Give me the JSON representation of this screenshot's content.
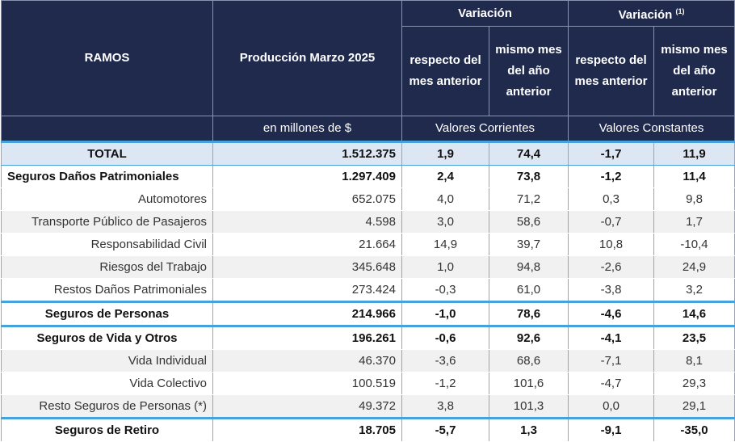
{
  "header": {
    "ramos": "RAMOS",
    "produccion": "Producción Marzo 2025",
    "variacion_corrientes": "Variación",
    "variacion_constantes": "Variación",
    "variacion_constantes_note": "(1)",
    "respecto_mes_anterior": "respecto del mes anterior",
    "mismo_mes_anio_anterior": "mismo mes del año anterior",
    "unidad": "en millones de $",
    "valores_corrientes": "Valores Corrientes",
    "valores_constantes": "Valores Constantes"
  },
  "rows": [
    {
      "label": "TOTAL",
      "produccion": "1.512.375",
      "vc_mes": "1,9",
      "vc_anio": "74,4",
      "vk_mes": "-1,7",
      "vk_anio": "11,9"
    },
    {
      "label": "Seguros Daños Patrimoniales",
      "produccion": "1.297.409",
      "vc_mes": "2,4",
      "vc_anio": "73,8",
      "vk_mes": "-1,2",
      "vk_anio": "11,4"
    },
    {
      "label": "Automotores",
      "produccion": "652.075",
      "vc_mes": "4,0",
      "vc_anio": "71,2",
      "vk_mes": "0,3",
      "vk_anio": "9,8"
    },
    {
      "label": "Transporte Público de Pasajeros",
      "produccion": "4.598",
      "vc_mes": "3,0",
      "vc_anio": "58,6",
      "vk_mes": "-0,7",
      "vk_anio": "1,7"
    },
    {
      "label": "Responsabilidad Civil",
      "produccion": "21.664",
      "vc_mes": "14,9",
      "vc_anio": "39,7",
      "vk_mes": "10,8",
      "vk_anio": "-10,4"
    },
    {
      "label": "Riesgos del Trabajo",
      "produccion": "345.648",
      "vc_mes": "1,0",
      "vc_anio": "94,8",
      "vk_mes": "-2,6",
      "vk_anio": "24,9"
    },
    {
      "label": "Restos Daños Patrimoniales",
      "produccion": "273.424",
      "vc_mes": "-0,3",
      "vc_anio": "61,0",
      "vk_mes": "-3,8",
      "vk_anio": "3,2"
    },
    {
      "label": "Seguros de Personas",
      "produccion": "214.966",
      "vc_mes": "-1,0",
      "vc_anio": "78,6",
      "vk_mes": "-4,6",
      "vk_anio": "14,6"
    },
    {
      "label": "Seguros de Vida y Otros",
      "produccion": "196.261",
      "vc_mes": "-0,6",
      "vc_anio": "92,6",
      "vk_mes": "-4,1",
      "vk_anio": "23,5"
    },
    {
      "label": "Vida Individual",
      "produccion": "46.370",
      "vc_mes": "-3,6",
      "vc_anio": "68,6",
      "vk_mes": "-7,1",
      "vk_anio": "8,1"
    },
    {
      "label": "Vida Colectivo",
      "produccion": "100.519",
      "vc_mes": "-1,2",
      "vc_anio": "101,6",
      "vk_mes": "-4,7",
      "vk_anio": "29,3"
    },
    {
      "label": "Resto Seguros de Personas (*)",
      "produccion": "49.372",
      "vc_mes": "3,8",
      "vc_anio": "101,3",
      "vk_mes": "0,0",
      "vk_anio": "29,1"
    },
    {
      "label": "Seguros de Retiro",
      "produccion": "18.705",
      "vc_mes": "-5,7",
      "vc_anio": "1,3",
      "vk_mes": "-9,1",
      "vk_anio": "-35,0"
    }
  ]
}
